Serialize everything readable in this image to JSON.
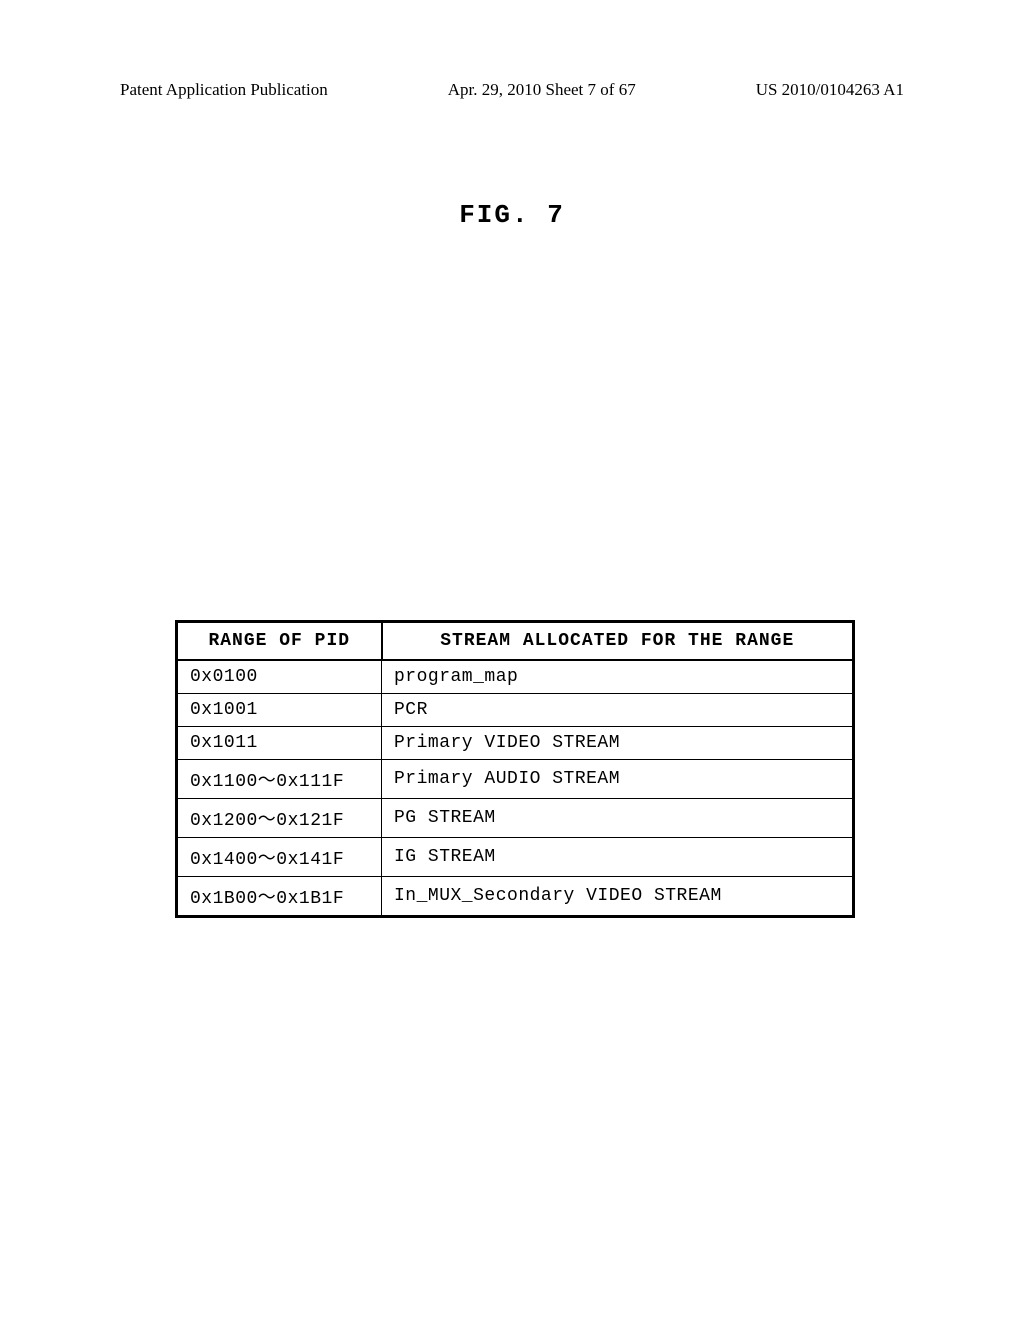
{
  "header": {
    "left": "Patent Application Publication",
    "center": "Apr. 29, 2010  Sheet 7 of 67",
    "right": "US 2010/0104263 A1"
  },
  "figure_label": "FIG. 7",
  "table": {
    "columns": [
      "RANGE OF PID",
      "STREAM ALLOCATED FOR THE RANGE"
    ],
    "rows": [
      [
        "0x0100",
        "program_map"
      ],
      [
        "0x1001",
        "PCR"
      ],
      [
        "0x1011",
        "Primary VIDEO STREAM"
      ],
      [
        "0x1100～0x111F",
        "Primary AUDIO STREAM"
      ],
      [
        "0x1200～0x121F",
        "PG STREAM"
      ],
      [
        "0x1400～0x141F",
        "IG STREAM"
      ],
      [
        "0x1B00～0x1B1F",
        "In_MUX_Secondary VIDEO STREAM"
      ]
    ],
    "border_color": "#000000",
    "background_color": "#ffffff",
    "font_family": "Courier New",
    "header_fontsize": 18,
    "cell_fontsize": 18,
    "col1_width": 205
  }
}
